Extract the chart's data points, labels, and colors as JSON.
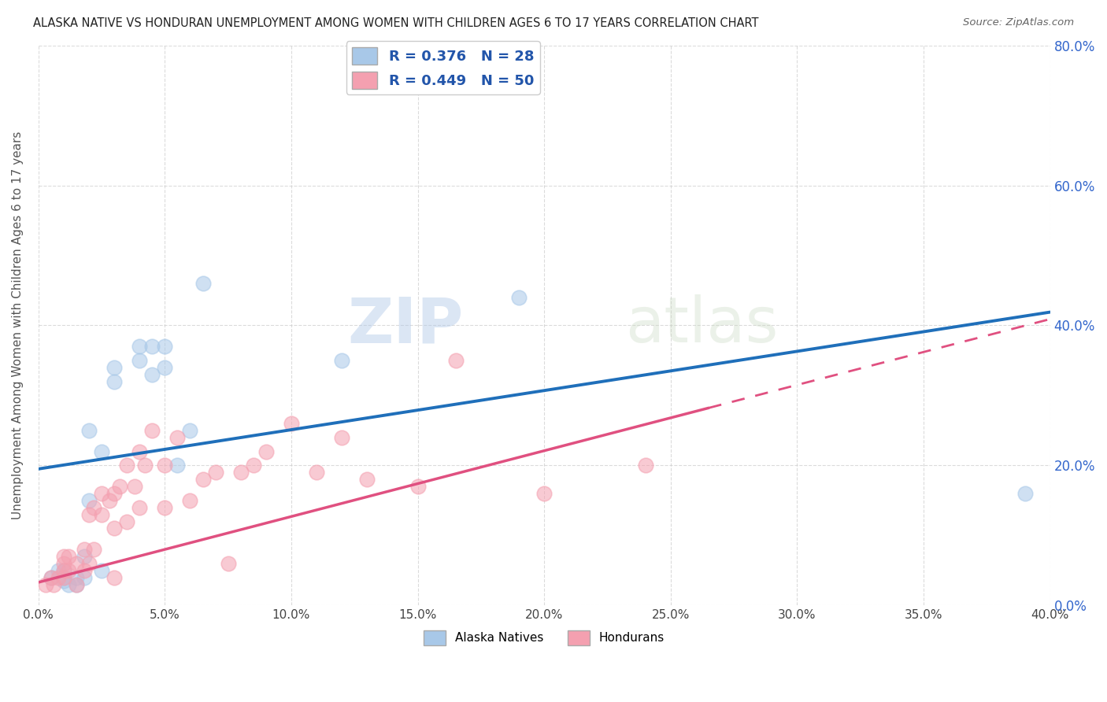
{
  "title": "ALASKA NATIVE VS HONDURAN UNEMPLOYMENT AMONG WOMEN WITH CHILDREN AGES 6 TO 17 YEARS CORRELATION CHART",
  "source": "Source: ZipAtlas.com",
  "ylabel": "Unemployment Among Women with Children Ages 6 to 17 years",
  "xlim": [
    0.0,
    0.4
  ],
  "ylim": [
    0.0,
    0.8
  ],
  "xticks": [
    0.0,
    0.05,
    0.1,
    0.15,
    0.2,
    0.25,
    0.3,
    0.35,
    0.4
  ],
  "yticks": [
    0.0,
    0.2,
    0.4,
    0.6,
    0.8
  ],
  "alaska_R": 0.376,
  "alaska_N": 28,
  "honduran_R": 0.449,
  "honduran_N": 50,
  "alaska_color": "#a8c8e8",
  "honduran_color": "#f4a0b0",
  "alaska_line_color": "#1f6fba",
  "honduran_line_color": "#e05080",
  "watermark_zip": "ZIP",
  "watermark_atlas": "atlas",
  "alaska_x": [
    0.005,
    0.008,
    0.01,
    0.01,
    0.01,
    0.012,
    0.015,
    0.015,
    0.018,
    0.018,
    0.02,
    0.02,
    0.025,
    0.025,
    0.03,
    0.03,
    0.04,
    0.04,
    0.045,
    0.045,
    0.05,
    0.05,
    0.055,
    0.06,
    0.065,
    0.12,
    0.19,
    0.39
  ],
  "alaska_y": [
    0.04,
    0.05,
    0.035,
    0.04,
    0.05,
    0.03,
    0.03,
    0.04,
    0.04,
    0.07,
    0.15,
    0.25,
    0.22,
    0.05,
    0.32,
    0.34,
    0.35,
    0.37,
    0.33,
    0.37,
    0.34,
    0.37,
    0.2,
    0.25,
    0.46,
    0.35,
    0.44,
    0.16
  ],
  "honduran_x": [
    0.003,
    0.005,
    0.006,
    0.008,
    0.01,
    0.01,
    0.01,
    0.01,
    0.012,
    0.012,
    0.015,
    0.015,
    0.018,
    0.018,
    0.02,
    0.02,
    0.022,
    0.022,
    0.025,
    0.025,
    0.028,
    0.03,
    0.03,
    0.03,
    0.032,
    0.035,
    0.035,
    0.038,
    0.04,
    0.04,
    0.042,
    0.045,
    0.05,
    0.05,
    0.055,
    0.06,
    0.065,
    0.07,
    0.075,
    0.08,
    0.085,
    0.09,
    0.1,
    0.11,
    0.12,
    0.13,
    0.15,
    0.165,
    0.2,
    0.24
  ],
  "honduran_y": [
    0.03,
    0.04,
    0.03,
    0.04,
    0.04,
    0.05,
    0.06,
    0.07,
    0.05,
    0.07,
    0.03,
    0.06,
    0.05,
    0.08,
    0.06,
    0.13,
    0.08,
    0.14,
    0.13,
    0.16,
    0.15,
    0.04,
    0.11,
    0.16,
    0.17,
    0.12,
    0.2,
    0.17,
    0.14,
    0.22,
    0.2,
    0.25,
    0.14,
    0.2,
    0.24,
    0.15,
    0.18,
    0.19,
    0.06,
    0.19,
    0.2,
    0.22,
    0.26,
    0.19,
    0.24,
    0.18,
    0.17,
    0.35,
    0.16,
    0.2
  ],
  "alaska_line_intercept": 0.195,
  "alaska_line_slope": 0.56,
  "honduran_line_intercept": 0.033,
  "honduran_line_slope": 0.94
}
